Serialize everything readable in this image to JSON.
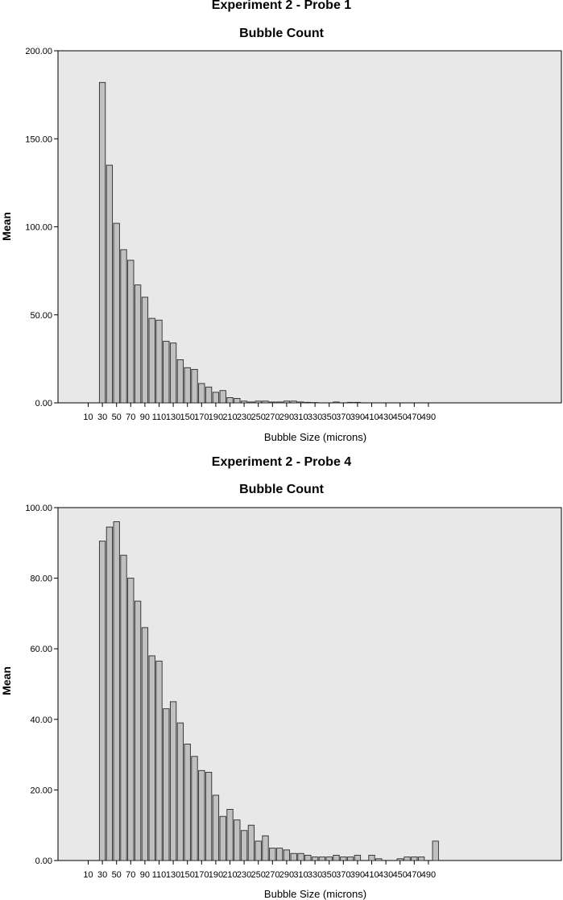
{
  "colors": {
    "plot_background": "#e8e8e8",
    "bar_fill": "#c0c0c0",
    "bar_stroke": "#2a2a2a",
    "axis": "#000000"
  },
  "chart_data": [
    {
      "type": "bar",
      "title": "Experiment 2 - Probe 1",
      "subtitle": "Bubble Count",
      "xlabel": "Bubble Size (microns)",
      "ylabel": "Mean",
      "ylim": [
        0,
        200
      ],
      "yticks": [
        "0.00",
        "50.00",
        "100.00",
        "150.00",
        "200.00"
      ],
      "xtick_labels": [
        "10",
        "30",
        "50",
        "70",
        "90",
        "110",
        "130",
        "150",
        "170",
        "190",
        "210",
        "230",
        "250",
        "270",
        "290",
        "310",
        "330",
        "350",
        "370",
        "390",
        "410",
        "430",
        "450",
        "470",
        "490"
      ],
      "categories": [
        10,
        20,
        30,
        40,
        50,
        60,
        70,
        80,
        90,
        100,
        110,
        120,
        130,
        140,
        150,
        160,
        170,
        180,
        190,
        200,
        210,
        220,
        230,
        240,
        250,
        260,
        270,
        280,
        290,
        300,
        310,
        320,
        330,
        340,
        350,
        360,
        370,
        380,
        390,
        400,
        410,
        420,
        430,
        440,
        450,
        460,
        470,
        480,
        490,
        500
      ],
      "values": [
        0,
        0,
        182,
        135,
        102,
        87,
        81,
        67,
        60,
        48,
        47,
        35,
        34,
        24.5,
        20,
        19,
        11,
        9,
        6,
        7,
        3,
        2.5,
        1,
        0.5,
        1,
        1,
        0.5,
        0.5,
        1,
        1,
        0.5,
        0.3,
        0.2,
        0,
        0,
        0.5,
        0,
        0.3,
        0.3,
        0,
        0,
        0,
        0,
        0,
        0,
        0,
        0,
        0,
        0,
        0
      ]
    },
    {
      "type": "bar",
      "title": "Experiment 2 - Probe 4",
      "subtitle": "Bubble Count",
      "xlabel": "Bubble Size (microns)",
      "ylabel": "Mean",
      "ylim": [
        0,
        100
      ],
      "yticks": [
        "0.00",
        "20.00",
        "40.00",
        "60.00",
        "80.00",
        "100.00"
      ],
      "xtick_labels": [
        "10",
        "30",
        "50",
        "70",
        "90",
        "110",
        "130",
        "150",
        "170",
        "190",
        "210",
        "230",
        "250",
        "270",
        "290",
        "310",
        "330",
        "350",
        "370",
        "390",
        "410",
        "430",
        "450",
        "470",
        "490"
      ],
      "categories": [
        10,
        20,
        30,
        40,
        50,
        60,
        70,
        80,
        90,
        100,
        110,
        120,
        130,
        140,
        150,
        160,
        170,
        180,
        190,
        200,
        210,
        220,
        230,
        240,
        250,
        260,
        270,
        280,
        290,
        300,
        310,
        320,
        330,
        340,
        350,
        360,
        370,
        380,
        390,
        400,
        410,
        420,
        430,
        440,
        450,
        460,
        470,
        480,
        490,
        500
      ],
      "values": [
        0,
        0,
        90.5,
        94.5,
        96,
        86.5,
        80,
        73.5,
        66,
        58,
        56.5,
        43,
        45,
        39,
        33,
        29.5,
        25.5,
        25,
        18.5,
        12.5,
        14.5,
        11.5,
        8.5,
        10,
        5.5,
        7,
        3.5,
        3.5,
        3,
        2,
        2,
        1.5,
        1,
        1,
        1,
        1.5,
        1,
        1,
        1.5,
        0,
        1.5,
        0.5,
        0,
        0,
        0.5,
        1,
        1,
        1,
        0,
        5.5
      ]
    }
  ]
}
